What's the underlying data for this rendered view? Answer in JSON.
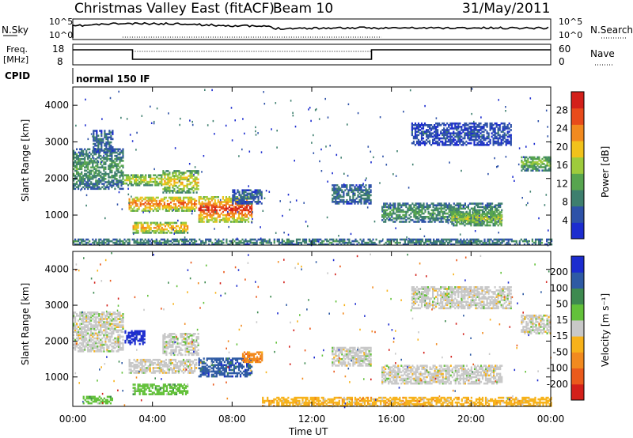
{
  "header": {
    "title": "Christmas Valley East (fitACF)",
    "beam": "Beam 10",
    "date": "31/May/2011"
  },
  "params": {
    "nsky_label": "N.Sky",
    "nsky_ticks": [
      "10^5",
      "10^0"
    ],
    "nsearch_label": "N.Search",
    "freq_label": "Freq.",
    "freq_unit": "[MHz]",
    "freq_ticks": [
      "18",
      "8"
    ],
    "nave_ticks": [
      "60",
      "0"
    ],
    "nave_label": "Nave",
    "cpid_label": "CPID",
    "cpid_value": "normal 150 IF"
  },
  "chart_data": [
    {
      "type": "heatmap",
      "name": "power",
      "ylabel": "Slant Range [km]",
      "yticks": [
        "1000",
        "2000",
        "3000",
        "4000"
      ],
      "ylim": [
        180,
        4500
      ],
      "xlim": [
        0,
        24
      ],
      "colorbar_label": "Power [dB]",
      "colorbar_ticks": [
        "4",
        "8",
        "12",
        "16",
        "20",
        "24",
        "28"
      ],
      "colors": [
        "#1c2ccf",
        "#2e52a8",
        "#3e7f6e",
        "#57a54f",
        "#9ecb3c",
        "#f1c21b",
        "#f28a1f",
        "#e84b1b",
        "#d3201a"
      ],
      "regions": [
        {
          "t": [
            0.0,
            2.5
          ],
          "r": [
            1700,
            2800
          ],
          "level": 0.35
        },
        {
          "t": [
            1.0,
            2.0
          ],
          "r": [
            2700,
            3300
          ],
          "level": 0.2
        },
        {
          "t": [
            2.5,
            4.5
          ],
          "r": [
            1800,
            2100
          ],
          "level": 0.6
        },
        {
          "t": [
            2.8,
            6.2
          ],
          "r": [
            1100,
            1500
          ],
          "level": 0.85
        },
        {
          "t": [
            4.5,
            6.3
          ],
          "r": [
            1600,
            2200
          ],
          "level": 0.65
        },
        {
          "t": [
            3.0,
            5.8
          ],
          "r": [
            500,
            800
          ],
          "level": 0.75
        },
        {
          "t": [
            6.3,
            9.0
          ],
          "r": [
            800,
            1500
          ],
          "level": 0.95
        },
        {
          "t": [
            8.0,
            9.5
          ],
          "r": [
            1300,
            1700
          ],
          "level": 0.2
        },
        {
          "t": [
            13.0,
            15.0
          ],
          "r": [
            1300,
            1800
          ],
          "level": 0.25
        },
        {
          "t": [
            15.5,
            21.5
          ],
          "r": [
            800,
            1300
          ],
          "level": 0.35
        },
        {
          "t": [
            19.0,
            21.5
          ],
          "r": [
            700,
            1100
          ],
          "level": 0.55
        },
        {
          "t": [
            17.0,
            22.0
          ],
          "r": [
            2900,
            3500
          ],
          "level": 0.12
        },
        {
          "t": [
            22.5,
            24.0
          ],
          "r": [
            2200,
            2600
          ],
          "level": 0.45
        },
        {
          "t": [
            0.0,
            24.0
          ],
          "r": [
            180,
            320
          ],
          "level": 0.3
        }
      ]
    },
    {
      "type": "heatmap",
      "name": "velocity",
      "ylabel": "Slant Range [km]",
      "yticks": [
        "1000",
        "2000",
        "3000",
        "4000"
      ],
      "ylim": [
        180,
        4500
      ],
      "xlim": [
        0,
        24
      ],
      "colorbar_label": "Velocity [m s⁻¹]",
      "colorbar_ticks": [
        "200",
        "100",
        "50",
        "15",
        "-15",
        "-50",
        "-100",
        "-200"
      ],
      "colors": [
        "#1c2ccf",
        "#2e5aa4",
        "#3e8a50",
        "#63c13a",
        "#c8c8c8",
        "#f7b21a",
        "#f28a1f",
        "#ea5a1c",
        "#d3201a"
      ],
      "regions": [
        {
          "t": [
            0.0,
            2.5
          ],
          "r": [
            1700,
            2800
          ],
          "v": 4
        },
        {
          "t": [
            2.6,
            3.6
          ],
          "r": [
            1900,
            2300
          ],
          "v": 0
        },
        {
          "t": [
            2.8,
            6.2
          ],
          "r": [
            1100,
            1500
          ],
          "v": 4
        },
        {
          "t": [
            4.5,
            6.3
          ],
          "r": [
            1600,
            2200
          ],
          "v": 4
        },
        {
          "t": [
            3.0,
            5.8
          ],
          "r": [
            500,
            800
          ],
          "v": 3
        },
        {
          "t": [
            6.3,
            9.0
          ],
          "r": [
            1000,
            1500
          ],
          "v": 1
        },
        {
          "t": [
            8.5,
            9.5
          ],
          "r": [
            1400,
            1700
          ],
          "v": 6
        },
        {
          "t": [
            13.0,
            15.0
          ],
          "r": [
            1300,
            1800
          ],
          "v": 4
        },
        {
          "t": [
            15.5,
            21.5
          ],
          "r": [
            800,
            1300
          ],
          "v": 4
        },
        {
          "t": [
            17.0,
            22.0
          ],
          "r": [
            2900,
            3500
          ],
          "v": 4
        },
        {
          "t": [
            22.5,
            24.0
          ],
          "r": [
            2200,
            2700
          ],
          "v": 4
        },
        {
          "t": [
            9.5,
            24.0
          ],
          "r": [
            180,
            450
          ],
          "v": 5
        },
        {
          "t": [
            0.5,
            2.0
          ],
          "r": [
            250,
            450
          ],
          "v": 3
        }
      ]
    }
  ],
  "xaxis": {
    "label": "Time UT",
    "ticks": [
      "00:00",
      "04:00",
      "08:00",
      "12:00",
      "16:00",
      "20:00",
      "00:00"
    ]
  }
}
